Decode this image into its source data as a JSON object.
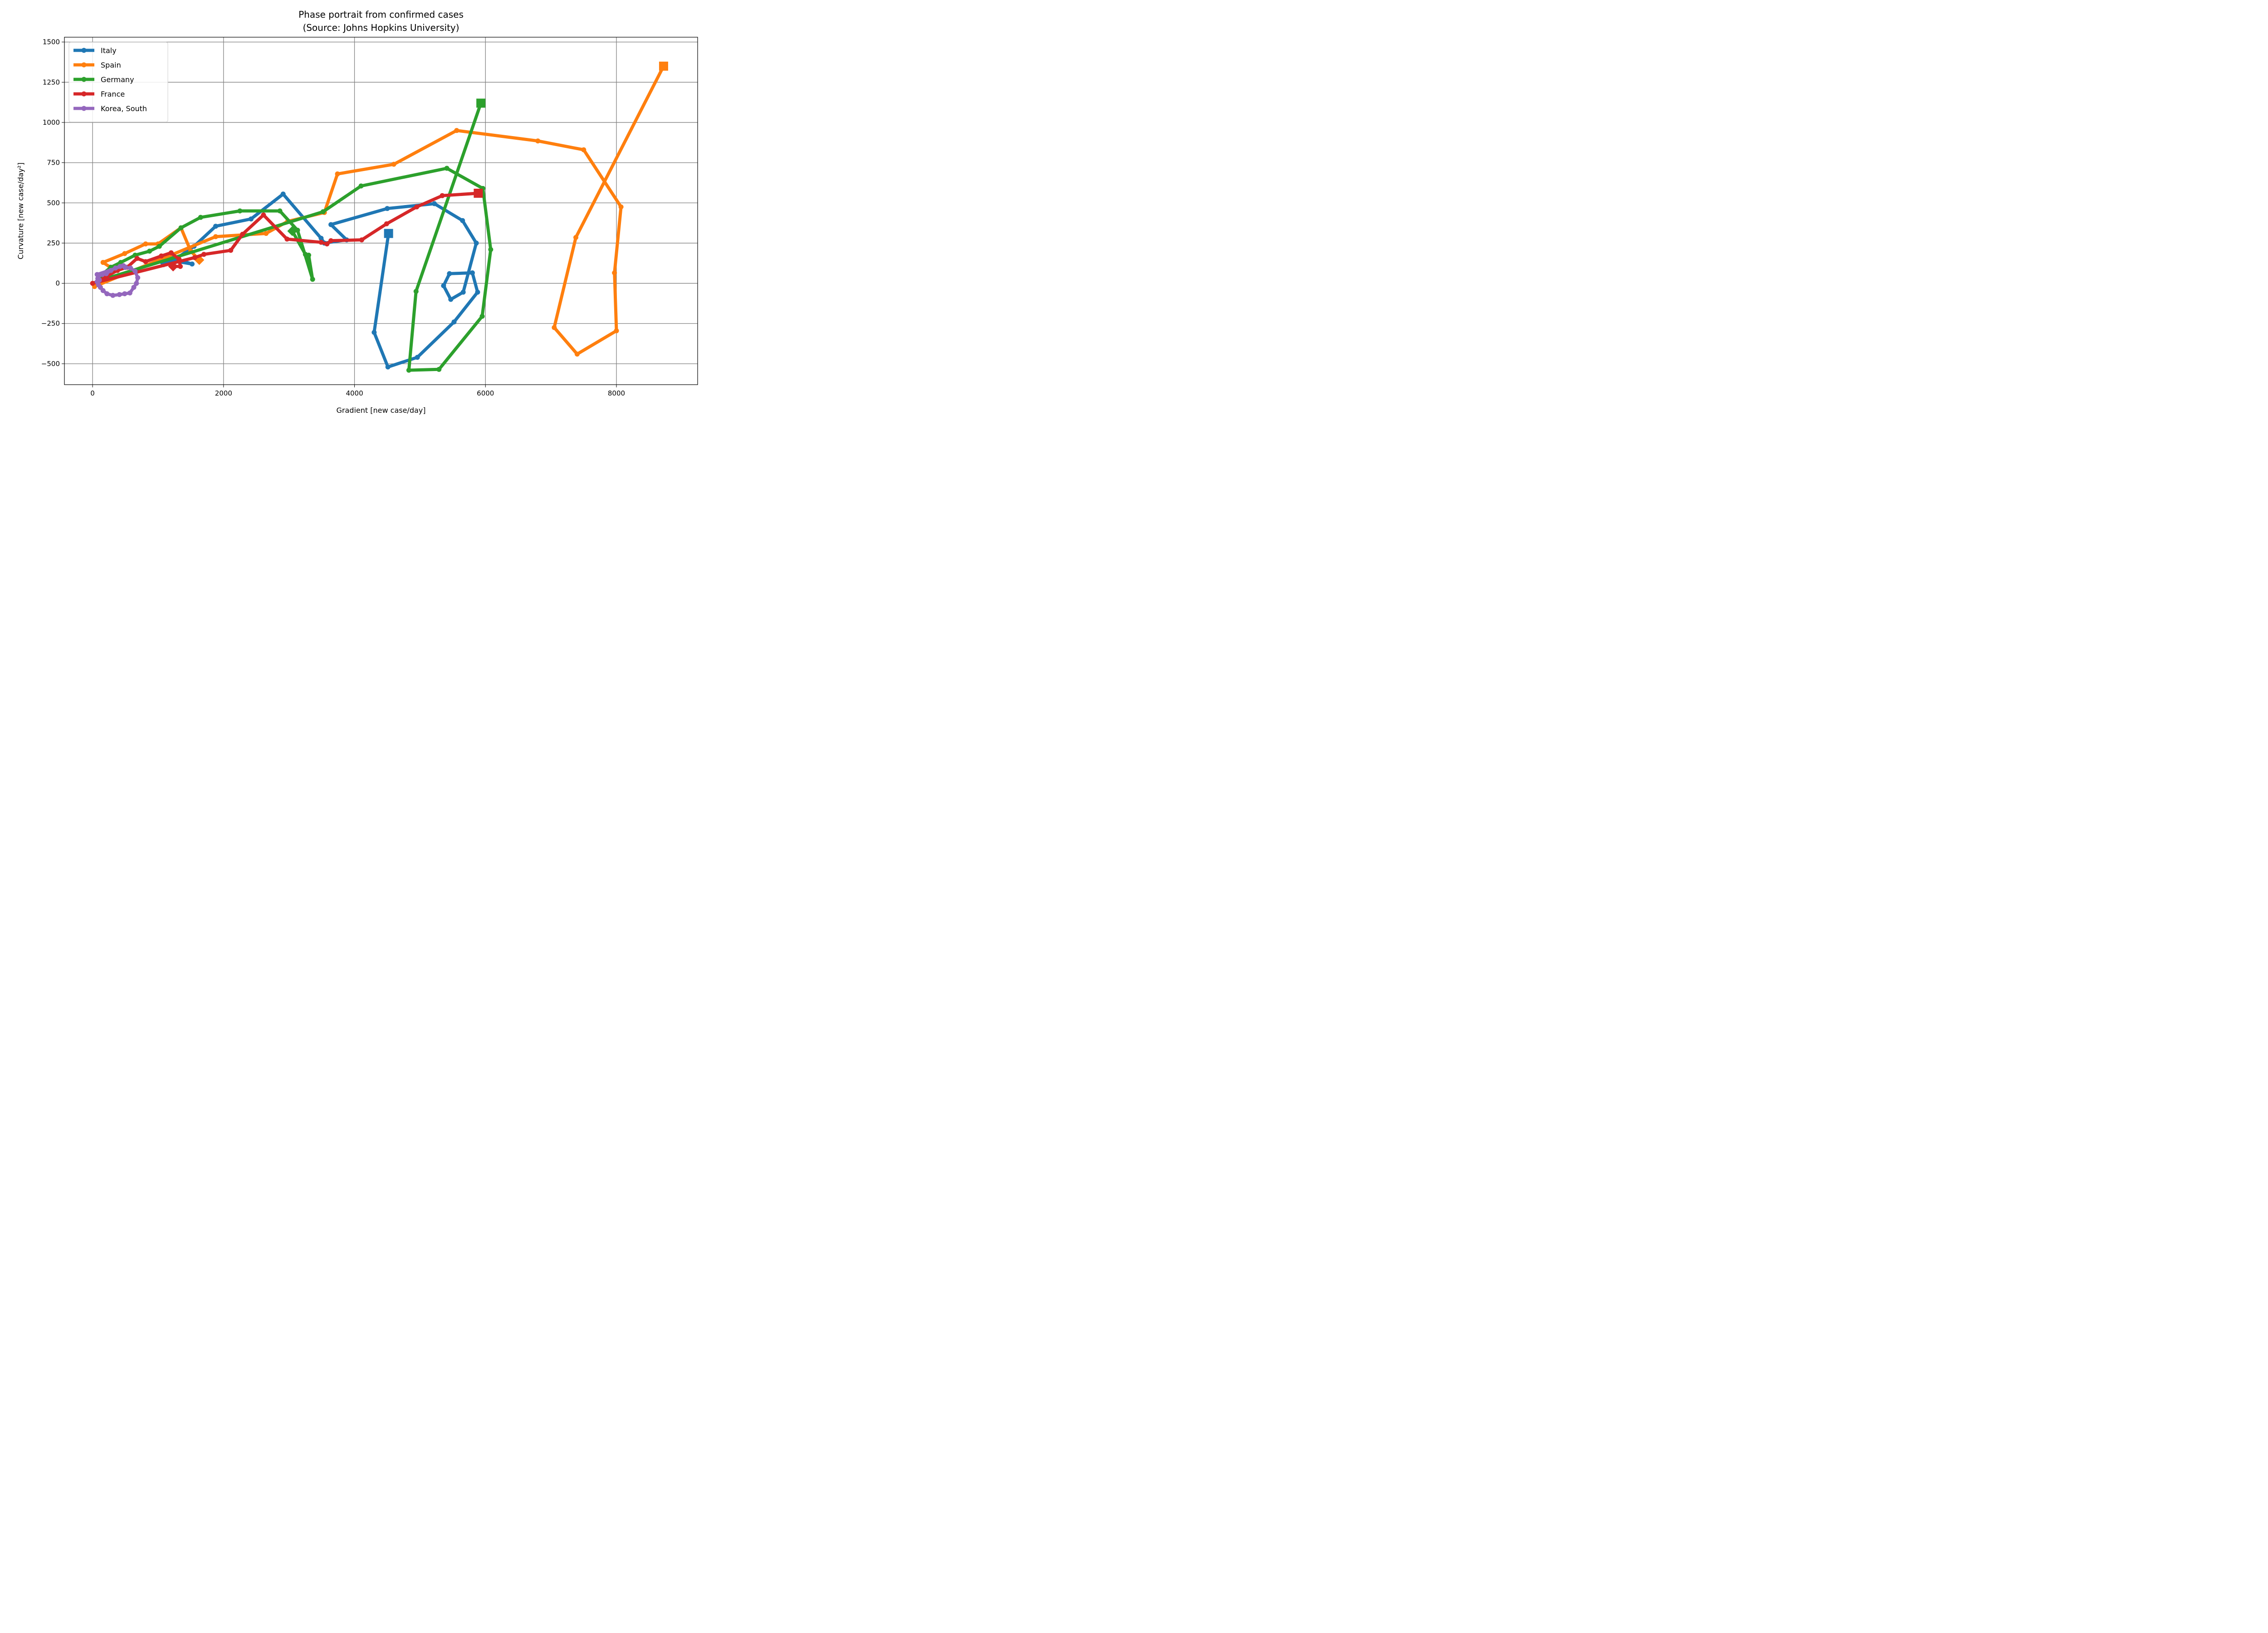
{
  "chart_data": {
    "type": "line",
    "title": "Phase portrait from confirmed cases",
    "subtitle": "(Source: Johns Hopkins University)",
    "xlabel": "Gradient [new case/day]",
    "ylabel": "Curvature [new case/day²]",
    "xlim": [
      -430,
      9240
    ],
    "ylim": [
      -630,
      1530
    ],
    "xticks": [
      0,
      2000,
      4000,
      6000,
      8000
    ],
    "xtick_labels": [
      "0",
      "2000",
      "4000",
      "6000",
      "8000"
    ],
    "yticks": [
      -500,
      -250,
      0,
      250,
      500,
      750,
      1000,
      1250,
      1500
    ],
    "ytick_labels": [
      "−500",
      "−250",
      "0",
      "250",
      "500",
      "750",
      "1000",
      "1250",
      "1500"
    ],
    "grid": true,
    "legend_position": "top-left",
    "series": [
      {
        "name": "Italy",
        "color": "#1f77b4",
        "start_marker": "diamond",
        "end_marker": "square",
        "points": [
          [
            1090,
            130
          ],
          [
            1230,
            140
          ],
          [
            1520,
            120
          ],
          [
            1200,
            160
          ],
          [
            1100,
            170
          ],
          [
            1230,
            140
          ],
          [
            1550,
            230
          ],
          [
            1880,
            355
          ],
          [
            2420,
            400
          ],
          [
            2910,
            555
          ],
          [
            3490,
            280
          ],
          [
            3540,
            250
          ],
          [
            3880,
            270
          ],
          [
            3640,
            365
          ],
          [
            4500,
            465
          ],
          [
            5220,
            495
          ],
          [
            5650,
            390
          ],
          [
            5860,
            250
          ],
          [
            5660,
            -55
          ],
          [
            5470,
            -100
          ],
          [
            5360,
            -15
          ],
          [
            5450,
            60
          ],
          [
            5800,
            65
          ],
          [
            5880,
            -55
          ],
          [
            5520,
            -240
          ],
          [
            4960,
            -460
          ],
          [
            4510,
            -520
          ],
          [
            4300,
            -305
          ],
          [
            4520,
            310
          ]
        ]
      },
      {
        "name": "Spain",
        "color": "#ff7f0e",
        "start_marker": "diamond",
        "end_marker": "square",
        "points": [
          [
            1630,
            145
          ],
          [
            1500,
            200
          ],
          [
            1350,
            345
          ],
          [
            1000,
            245
          ],
          [
            810,
            245
          ],
          [
            490,
            185
          ],
          [
            160,
            130
          ],
          [
            270,
            100
          ],
          [
            150,
            40
          ],
          [
            30,
            -20
          ],
          [
            1880,
            290
          ],
          [
            2650,
            310
          ],
          [
            2980,
            385
          ],
          [
            3540,
            440
          ],
          [
            3740,
            680
          ],
          [
            4600,
            740
          ],
          [
            5560,
            950
          ],
          [
            6800,
            885
          ],
          [
            7500,
            830
          ],
          [
            8070,
            475
          ],
          [
            7970,
            65
          ],
          [
            8000,
            -295
          ],
          [
            7400,
            -440
          ],
          [
            7050,
            -275
          ],
          [
            7380,
            285
          ],
          [
            8720,
            1350
          ]
        ]
      },
      {
        "name": "Germany",
        "color": "#2ca02c",
        "start_marker": "diamond",
        "end_marker": "square",
        "points": [
          [
            3050,
            325
          ],
          [
            3250,
            180
          ],
          [
            3300,
            175
          ],
          [
            3360,
            25
          ],
          [
            3130,
            330
          ],
          [
            2860,
            450
          ],
          [
            2250,
            450
          ],
          [
            1650,
            410
          ],
          [
            1350,
            345
          ],
          [
            1020,
            230
          ],
          [
            870,
            200
          ],
          [
            650,
            175
          ],
          [
            430,
            130
          ],
          [
            280,
            100
          ],
          [
            160,
            60
          ],
          [
            130,
            20
          ],
          [
            3520,
            445
          ],
          [
            4100,
            605
          ],
          [
            5410,
            715
          ],
          [
            5960,
            590
          ],
          [
            6080,
            210
          ],
          [
            5950,
            -205
          ],
          [
            5290,
            -535
          ],
          [
            4830,
            -540
          ],
          [
            4940,
            -50
          ],
          [
            5930,
            1120
          ]
        ]
      },
      {
        "name": "France",
        "color": "#d62728",
        "start_marker": "diamond",
        "end_marker": "square",
        "points": [
          [
            1230,
            105
          ],
          [
            1340,
            105
          ],
          [
            1320,
            150
          ],
          [
            1200,
            190
          ],
          [
            1050,
            170
          ],
          [
            810,
            135
          ],
          [
            680,
            155
          ],
          [
            530,
            100
          ],
          [
            380,
            80
          ],
          [
            220,
            45
          ],
          [
            100,
            15
          ],
          [
            0,
            0
          ],
          [
            1560,
            160
          ],
          [
            1700,
            180
          ],
          [
            2110,
            205
          ],
          [
            2290,
            305
          ],
          [
            2610,
            425
          ],
          [
            2970,
            275
          ],
          [
            3490,
            255
          ],
          [
            3580,
            245
          ],
          [
            3640,
            265
          ],
          [
            4110,
            270
          ],
          [
            4490,
            370
          ],
          [
            4950,
            475
          ],
          [
            5340,
            545
          ],
          [
            5890,
            560
          ]
        ]
      },
      {
        "name": "Korea, South",
        "color": "#9467bd",
        "start_marker": "circle",
        "end_marker": "circle",
        "points": [
          [
            500,
            100
          ],
          [
            580,
            95
          ],
          [
            650,
            75
          ],
          [
            690,
            35
          ],
          [
            670,
            0
          ],
          [
            630,
            -25
          ],
          [
            570,
            -60
          ],
          [
            490,
            -65
          ],
          [
            410,
            -70
          ],
          [
            310,
            -75
          ],
          [
            220,
            -65
          ],
          [
            160,
            -45
          ],
          [
            120,
            -25
          ],
          [
            90,
            -10
          ],
          [
            70,
            10
          ],
          [
            80,
            30
          ],
          [
            100,
            50
          ],
          [
            150,
            55
          ],
          [
            210,
            60
          ],
          [
            280,
            80
          ],
          [
            350,
            95
          ],
          [
            420,
            105
          ],
          [
            470,
            110
          ],
          [
            70,
            55
          ],
          [
            100,
            20
          ]
        ]
      }
    ]
  }
}
